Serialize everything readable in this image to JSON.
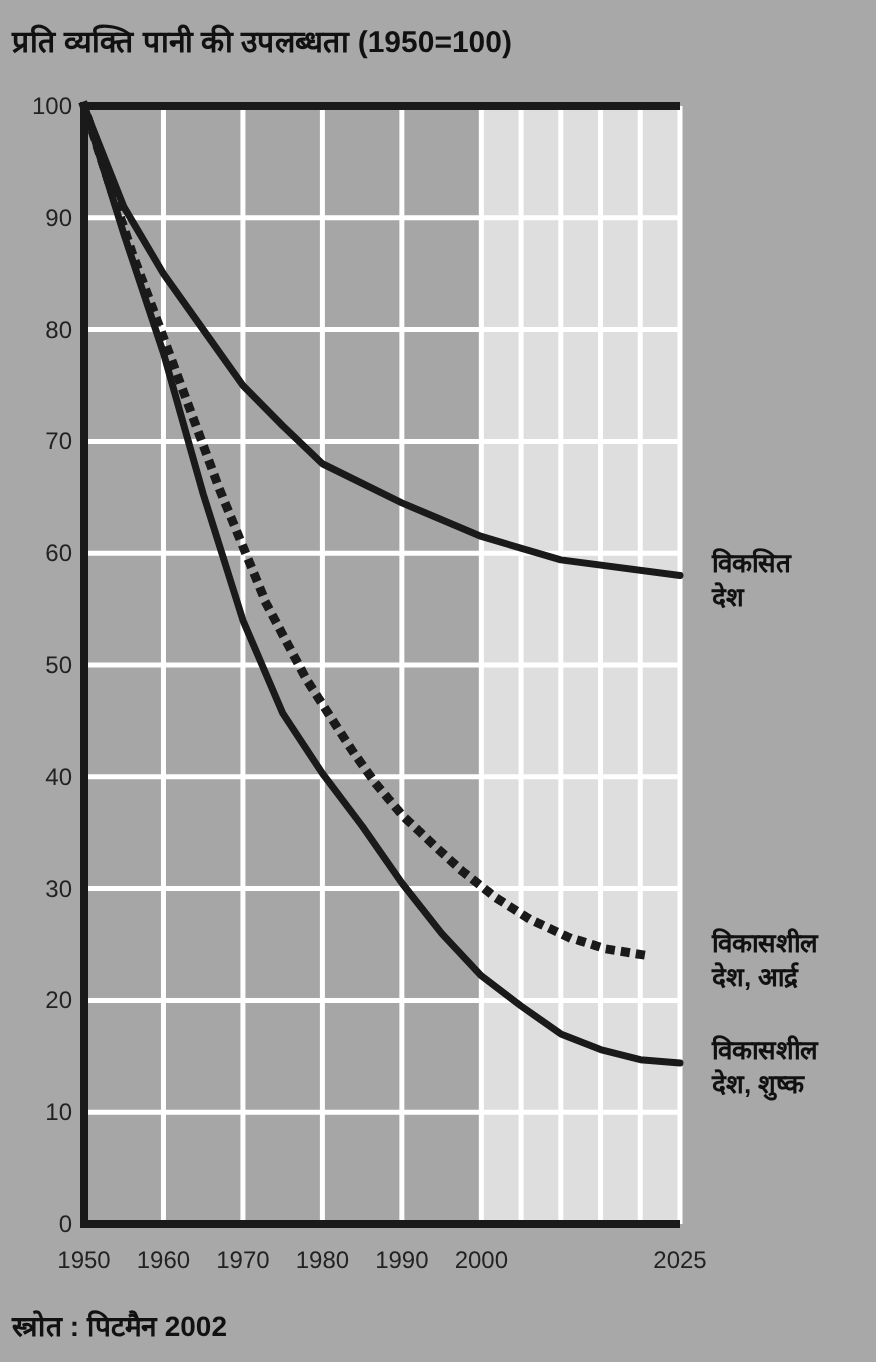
{
  "chart_data": {
    "type": "line",
    "title": "प्रति व्यक्ति पानी की उपलब्धता (1950=100)",
    "annotations": [
      "स्त्रोत : पिटमैन 2002"
    ],
    "xlim": [
      1950,
      2025
    ],
    "ylim": [
      0,
      100
    ],
    "xticks": [
      1950,
      1960,
      1970,
      1980,
      1990,
      2000,
      {
        "value": 2005,
        "label": null
      },
      {
        "value": 2010,
        "label": null
      },
      {
        "value": 2015,
        "label": null
      },
      {
        "value": 2020,
        "label": null
      },
      2025
    ],
    "yticks": [
      0,
      10,
      20,
      30,
      40,
      50,
      60,
      70,
      80,
      90,
      100
    ],
    "grid": true,
    "legend": false,
    "marker": "none",
    "bands": [
      {
        "axis": "x",
        "from": 2000,
        "to": 2025,
        "color": "#dedede"
      }
    ],
    "series": [
      {
        "name": "विकसित देश",
        "color": "#1a1a1a",
        "line_style": "solid",
        "x": [
          1950,
          1955,
          1960,
          1965,
          1970,
          1975,
          1980,
          1990,
          2000,
          2010,
          2025
        ],
        "values": [
          100,
          91,
          85,
          80,
          75,
          71.4,
          68,
          64.5,
          61.5,
          59.4,
          58
        ]
      },
      {
        "name": "विकासशील देश, आर्द्र",
        "color": "#1a1a1a",
        "line_style": "dotted",
        "x": [
          1950,
          1956,
          1961.5,
          1967,
          1973,
          1978,
          1983.7,
          1986.7,
          1990,
          1994,
          1997.7,
          2001.8,
          2006,
          2010.8,
          2015.7,
          2021
        ],
        "values": [
          100,
          87,
          76.4,
          65.8,
          55.4,
          48.7,
          42.4,
          39.4,
          36.6,
          33.9,
          31.5,
          29.2,
          27.3,
          25.7,
          24.6,
          24
        ]
      },
      {
        "name": "विकासशील देश, शुष्क",
        "color": "#1a1a1a",
        "line_style": "solid",
        "x": [
          1950,
          1955,
          1960,
          1965,
          1970,
          1975,
          1980,
          1985,
          1990,
          1995,
          2000,
          2005,
          2010,
          2015,
          2020,
          2025
        ],
        "values": [
          100,
          88.6,
          77.9,
          65.3,
          54,
          45.7,
          40.3,
          35.6,
          30.5,
          26,
          22.2,
          19.5,
          17,
          15.6,
          14.7,
          14.4
        ]
      }
    ]
  }
}
